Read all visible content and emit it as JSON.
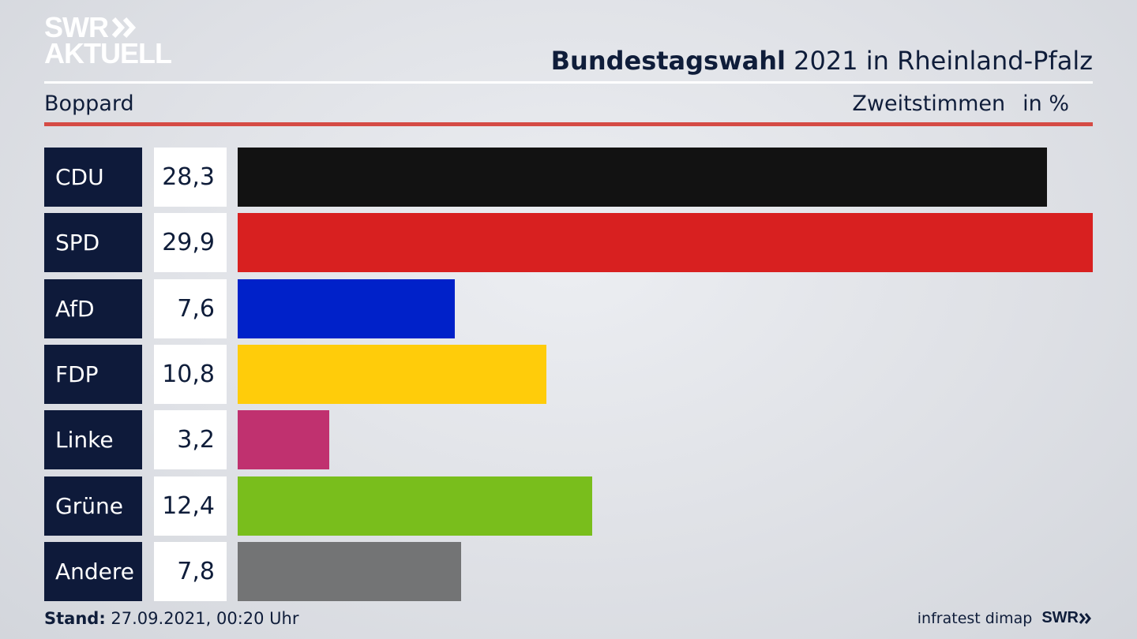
{
  "logo": {
    "line1": "SWR",
    "line2": "AKTUELL"
  },
  "header": {
    "title_bold": "Bundestagswahl",
    "title_rest": " 2021 in Rheinland-Pfalz",
    "region": "Boppard",
    "measure": "Zweitstimmen",
    "unit": "in %"
  },
  "chart_data": {
    "type": "bar",
    "orientation": "horizontal",
    "categories": [
      "CDU",
      "SPD",
      "AfD",
      "FDP",
      "Linke",
      "Grüne",
      "Andere"
    ],
    "values": [
      28.3,
      29.9,
      7.6,
      10.8,
      3.2,
      12.4,
      7.8
    ],
    "value_labels": [
      "28,3",
      "29,9",
      "7,6",
      "10,8",
      "3,2",
      "12,4",
      "7,8"
    ],
    "colors": [
      "#121212",
      "#d82020",
      "#0021c9",
      "#ffcc0a",
      "#c0316f",
      "#79be1c",
      "#737475"
    ],
    "xlim": [
      0,
      29.9
    ]
  },
  "footer": {
    "stand_label": "Stand:",
    "stand_value": " 27.09.2021, 00:20 Uhr",
    "source": "infratest dimap",
    "brand": "SWR"
  }
}
